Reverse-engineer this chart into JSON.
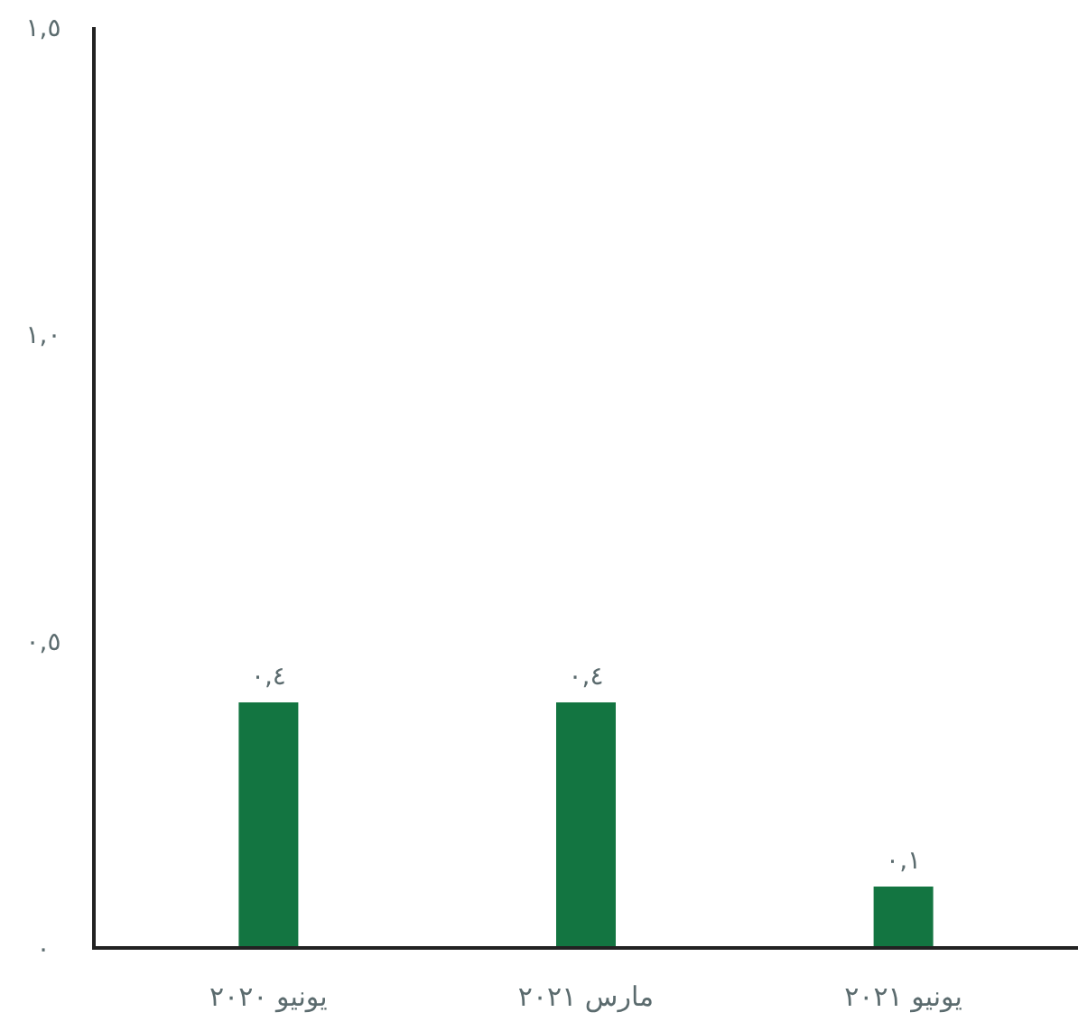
{
  "chart_data": {
    "type": "bar",
    "categories": [
      "يونيو ٢٠٢٠",
      "مارس ٢٠٢١",
      "يونيو ٢٠٢١"
    ],
    "values": [
      0.4,
      0.4,
      0.1
    ],
    "color": "#137541",
    "value_labels": [
      "٠,٤",
      "٠,٤",
      "٠,١"
    ],
    "ylim": [
      0,
      1.5
    ],
    "yticks": [
      {
        "value": 0,
        "label": "٠"
      },
      {
        "value": 0.5,
        "label": "٠,٥"
      },
      {
        "value": 1,
        "label": "١,٠"
      },
      {
        "value": 1.5,
        "label": "١,٥"
      }
    ],
    "grid": false
  }
}
